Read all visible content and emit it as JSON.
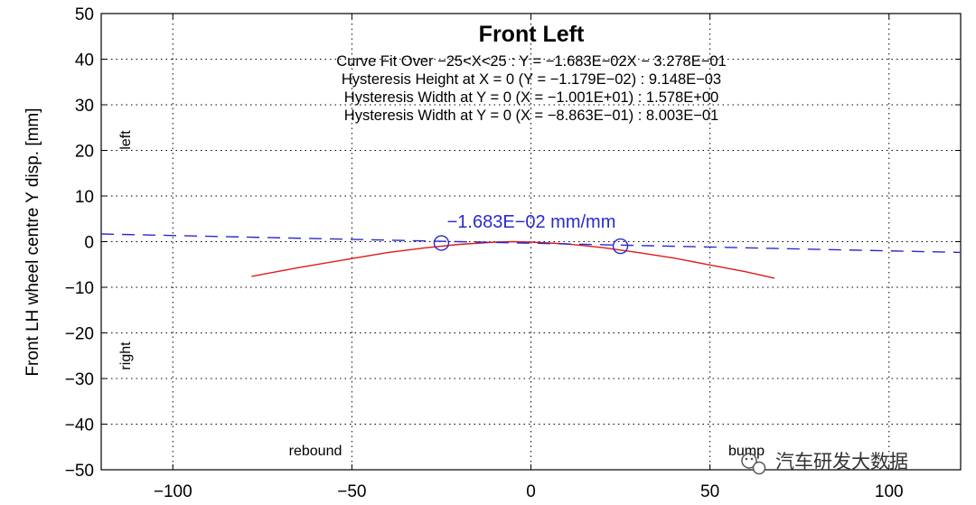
{
  "chart_data": {
    "type": "line",
    "title": "Front Left",
    "xlabel": "",
    "ylabel": "Front LH wheel centre Y disp. [mm]",
    "xlim": [
      -120,
      120
    ],
    "ylim": [
      -50,
      50
    ],
    "xticks": [
      -100,
      -50,
      0,
      50,
      100
    ],
    "yticks": [
      50,
      40,
      30,
      20,
      10,
      0,
      -10,
      -20,
      -30,
      -40,
      -50
    ],
    "xtick_labels": [
      "−100",
      "−50",
      "0",
      "50",
      "100"
    ],
    "ytick_labels": [
      "50",
      "40",
      "30",
      "20",
      "10",
      "0",
      "−10",
      "−20",
      "−30",
      "−40",
      "−50"
    ],
    "grid": true,
    "annotations": [
      "Curve Fit Over −25<X<25 : Y = −1.683E−02X − 3.278E−01",
      "Hysteresis Height at X = 0 (Y = −1.179E−02) : 9.148E−03",
      "Hysteresis Width at Y = 0 (X = −1.001E+01) : 1.578E+00",
      "Hysteresis Width at Y = 0 (X = −8.863E−01) : 8.003E−01"
    ],
    "slope_label": "−1.683E−02 mm/mm",
    "side_labels": {
      "left": "left",
      "right": "right",
      "rebound": "rebound",
      "bump": "bump"
    },
    "series": [
      {
        "style": "solid",
        "color": "#dd1c1c",
        "x": [
          -78,
          -65,
          -50,
          -40,
          -30,
          -20,
          -10,
          -5,
          0,
          10,
          20,
          30,
          40,
          50,
          60,
          68
        ],
        "y": [
          -7.6,
          -5.7,
          -3.7,
          -2.4,
          -1.4,
          -0.6,
          -0.1,
          0.0,
          -0.1,
          -0.5,
          -1.3,
          -2.4,
          -3.6,
          -5.1,
          -6.6,
          -8.0
        ]
      },
      {
        "style": "dashed",
        "color": "#2a2acc",
        "x": [
          -120,
          120
        ],
        "y": [
          1.69,
          -2.35
        ]
      }
    ],
    "markers": [
      {
        "x": -25,
        "y": -0.3,
        "color": "#2a2acc"
      },
      {
        "x": 25,
        "y": -1.0,
        "color": "#2a2acc"
      }
    ]
  },
  "watermark": "汽车研发大数据"
}
